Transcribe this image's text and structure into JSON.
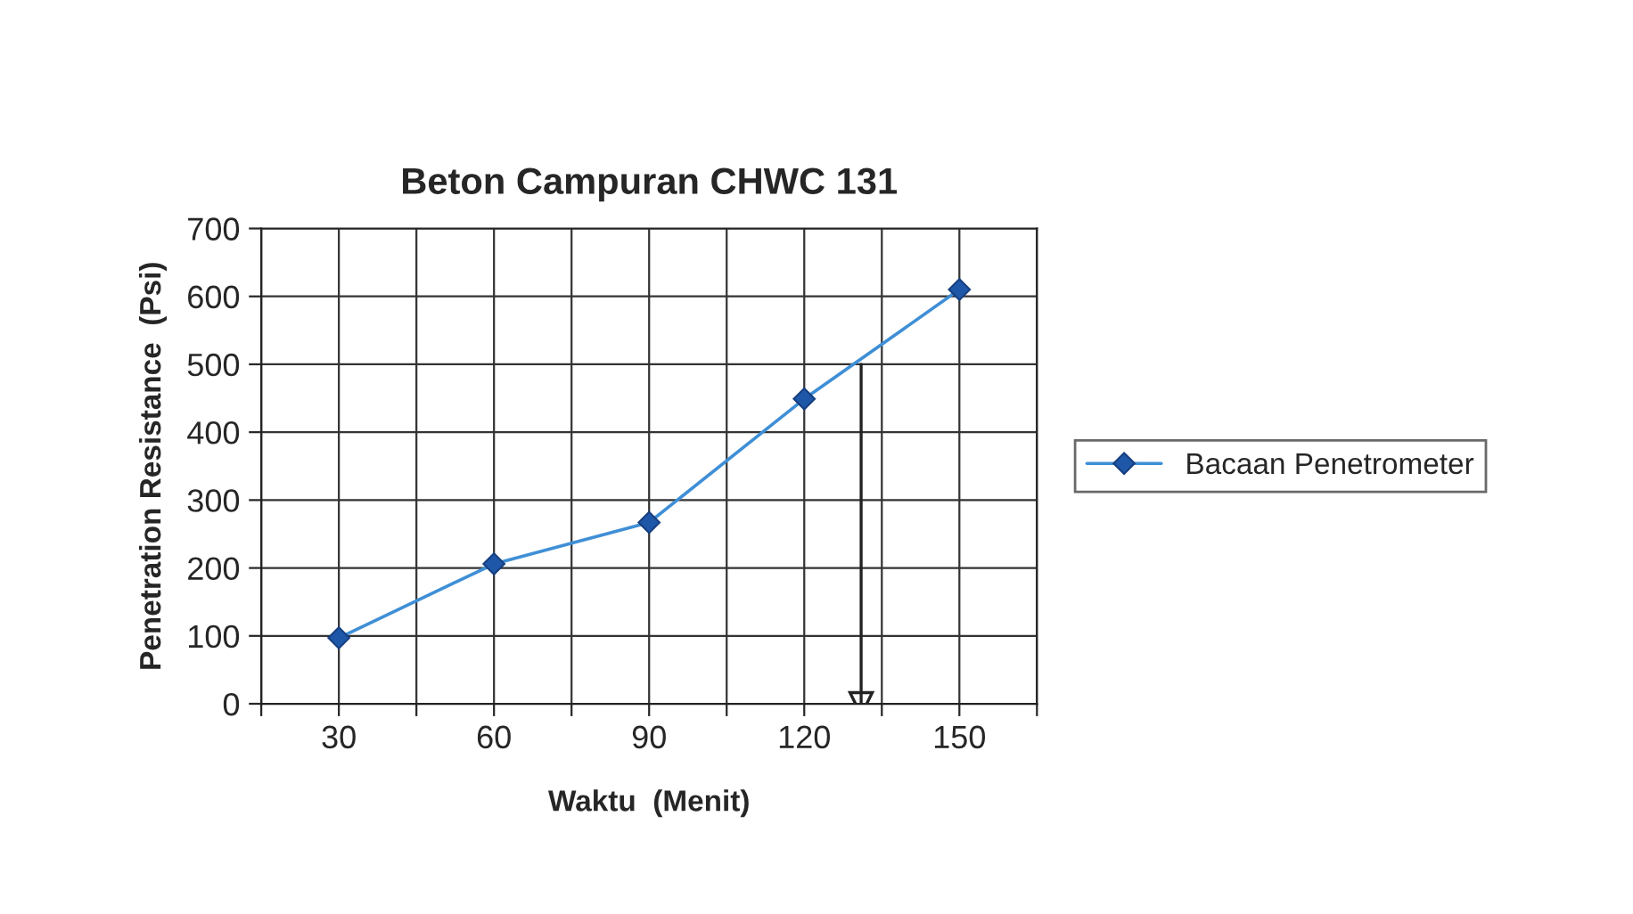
{
  "chart_data": {
    "type": "line",
    "title": "Beton Campuran CHWC 131",
    "xlabel": "Waktu  (Menit)",
    "ylabel": "Penetration Resistance  (Psi)",
    "x": [
      30,
      60,
      90,
      120,
      150
    ],
    "series": [
      {
        "name": "Bacaan Penetrometer",
        "color": "#3f8fd6",
        "values": [
          97,
          206,
          267,
          449,
          610
        ]
      },
      {
        "type": "line",
        "x": [
          131,
          131
        ],
        "values": [
          500,
          0
        ],
        "color": "#222222",
        "marker": "triangle"
      }
    ],
    "xlim": [
      15,
      165
    ],
    "xticks": [
      {
        "value": 15,
        "label": null
      },
      30,
      {
        "value": 45,
        "label": null
      },
      60,
      {
        "value": 75,
        "label": null
      },
      90,
      {
        "value": 105,
        "label": null
      },
      120,
      {
        "value": 135,
        "label": null
      },
      150,
      {
        "value": 165,
        "label": null
      }
    ],
    "ylim": [
      0,
      700
    ],
    "yticks": [
      0,
      100,
      200,
      300,
      400,
      500,
      600,
      700
    ],
    "grid": true,
    "legend": "right",
    "marker": "diamond",
    "line_style": "solid"
  }
}
